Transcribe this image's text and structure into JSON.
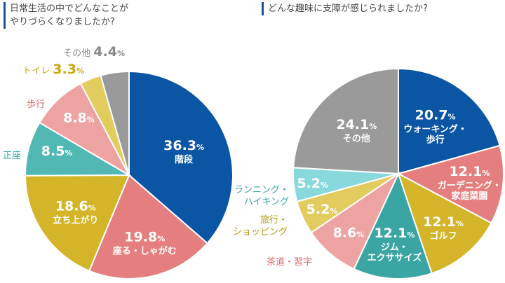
{
  "chart_data": [
    {
      "type": "pie",
      "title": "日常生活の中でどんなことが\nやりづらくなりましたか?",
      "unit": "%",
      "slices": [
        {
          "label": "階段",
          "value": 36.3,
          "value_text": "36.3",
          "color": "#0b56a4"
        },
        {
          "label": "座る・しゃがむ",
          "value": 19.8,
          "value_text": "19.8",
          "color": "#e57f7f"
        },
        {
          "label": "立ち上がり",
          "value": 18.6,
          "value_text": "18.6",
          "color": "#d4b428"
        },
        {
          "label": "正座",
          "value": 8.5,
          "value_text": "8.5",
          "color": "#52b8b3"
        },
        {
          "label": "歩行",
          "value": 8.8,
          "value_text": "8.8",
          "color": "#eea3a3"
        },
        {
          "label": "トイレ",
          "value": 3.3,
          "value_text": "3.3",
          "color": "#e3cc5e"
        },
        {
          "label": "その他",
          "value": 4.4,
          "value_text": "4.4",
          "color": "#9a9a9a"
        }
      ]
    },
    {
      "type": "pie",
      "title": "どんな趣味に支障が感じられましたか?",
      "unit": "%",
      "slices": [
        {
          "label": "ウォーキング・\n歩行",
          "value": 20.7,
          "value_text": "20.7",
          "color": "#0b56a4"
        },
        {
          "label": "ガーデニング・\n家庭菜園",
          "value": 12.1,
          "value_text": "12.1",
          "color": "#e57f7f"
        },
        {
          "label": "ゴルフ",
          "value": 12.1,
          "value_text": "12.1",
          "color": "#d4b428"
        },
        {
          "label": "ジム・\nエクササイズ",
          "value": 12.1,
          "value_text": "12.1",
          "color": "#3aa5a3"
        },
        {
          "label": "茶道・習字",
          "value": 8.6,
          "value_text": "8.6",
          "color": "#eea3a3"
        },
        {
          "label": "旅行・\nショッピング",
          "value": 5.2,
          "value_text": "5.2",
          "color": "#e3cc5e"
        },
        {
          "label": "ランニング・\nハイキング",
          "value": 5.2,
          "value_text": "5.2",
          "color": "#88d8dc"
        },
        {
          "label": "その他",
          "value": 24.1,
          "value_text": "24.1",
          "color": "#9a9a9a"
        }
      ]
    }
  ]
}
